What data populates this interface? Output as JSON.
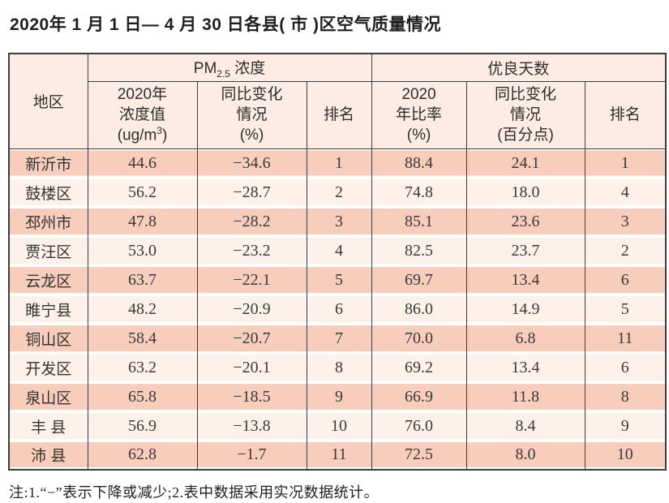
{
  "page": {
    "title": "2020年 1 月 1 日— 4 月 30 日各县( 市 )区空气质量情况",
    "footnote": "注:1.“−”表示下降或减少;2.表中数据采用实况数据统计。"
  },
  "table": {
    "region_header": "地区",
    "groups": {
      "pm": {
        "prefix": "PM",
        "sub": "2.5",
        "suffix": " 浓度"
      },
      "good": "优良天数"
    },
    "subheaders": {
      "pm_value": {
        "l1": "2020年",
        "l2": "浓度值",
        "unit_prefix": "(ug/m",
        "unit_sup": "3",
        "unit_suffix": ")"
      },
      "pm_change": {
        "l1": "同比变化",
        "l2": "情况",
        "l3": "(%)"
      },
      "pm_rank": "排名",
      "good_ratio": {
        "l1": "2020",
        "l2": "年比率",
        "l3": "(%)"
      },
      "good_change": {
        "l1": "同比变化",
        "l2": "情况",
        "l3": "(百分点)"
      },
      "good_rank": "排名"
    },
    "colors": {
      "header_bg": "#fcece4",
      "row_dark_bg": "#f8cdbb",
      "row_light_bg": "#fdf1ea",
      "border": "#3c3c3c"
    }
  },
  "chart_data": {
    "type": "table",
    "title": "2020年1月1日—4月30日各县(市)区空气质量情况",
    "column_groups": [
      {
        "label": "PM2.5浓度",
        "span": 3
      },
      {
        "label": "优良天数",
        "span": 3
      }
    ],
    "columns": [
      "地区",
      "2020年浓度值(ug/m3)",
      "同比变化情况(%)",
      "排名",
      "2020年比率(%)",
      "同比变化情况(百分点)",
      "排名"
    ],
    "rows": [
      [
        "新沂市",
        "44.6",
        "−34.6",
        "1",
        "88.4",
        "24.1",
        "1"
      ],
      [
        "鼓楼区",
        "56.2",
        "−28.7",
        "2",
        "74.8",
        "18.0",
        "4"
      ],
      [
        "邳州市",
        "47.8",
        "−28.2",
        "3",
        "85.1",
        "23.6",
        "3"
      ],
      [
        "贾汪区",
        "53.0",
        "−23.2",
        "4",
        "82.5",
        "23.7",
        "2"
      ],
      [
        "云龙区",
        "63.7",
        "−22.1",
        "5",
        "69.7",
        "13.4",
        "6"
      ],
      [
        "睢宁县",
        "48.2",
        "−20.9",
        "6",
        "86.0",
        "14.9",
        "5"
      ],
      [
        "铜山区",
        "58.4",
        "−20.7",
        "7",
        "70.0",
        "6.8",
        "11"
      ],
      [
        "开发区",
        "63.2",
        "−20.1",
        "8",
        "69.2",
        "13.4",
        "6"
      ],
      [
        "泉山区",
        "65.8",
        "−18.5",
        "9",
        "66.9",
        "11.8",
        "8"
      ],
      [
        "丰 县",
        "56.9",
        "−13.8",
        "10",
        "76.0",
        "8.4",
        "9"
      ],
      [
        "沛 县",
        "62.8",
        "−1.7",
        "11",
        "72.5",
        "8.0",
        "10"
      ]
    ],
    "note": "注:1.“−”表示下降或减少;2.表中数据采用实况数据统计。"
  }
}
